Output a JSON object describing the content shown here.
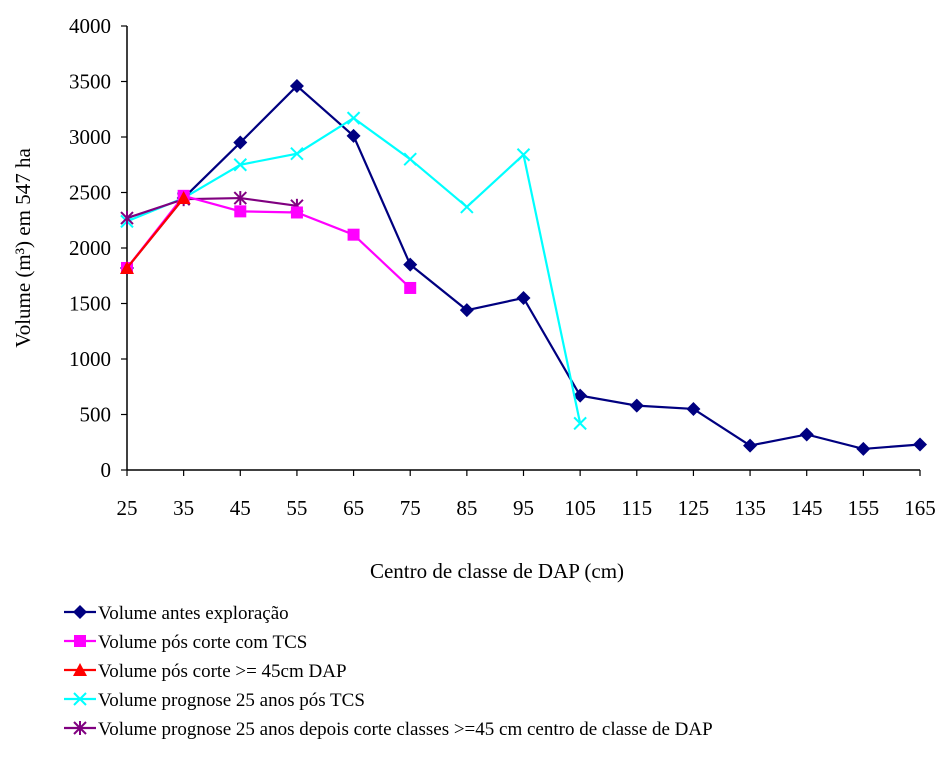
{
  "chart_data": {
    "type": "line",
    "title": "",
    "xlabel": "Centro de classe de DAP (cm)",
    "ylabel": "Volume (m³) em 547 ha",
    "categories": [
      "25",
      "35",
      "45",
      "55",
      "65",
      "75",
      "85",
      "95",
      "105",
      "115",
      "125",
      "135",
      "145",
      "155",
      "165"
    ],
    "ylim": [
      0,
      4000
    ],
    "yticks": [
      0,
      500,
      1000,
      1500,
      2000,
      2500,
      3000,
      3500,
      4000
    ],
    "grid": false,
    "legend_position": "bottom",
    "series": [
      {
        "name": "Volume antes exploração",
        "color": "#000080",
        "marker": "diamond",
        "values": [
          1820,
          2450,
          2950,
          3460,
          3010,
          1850,
          1440,
          1550,
          670,
          580,
          550,
          220,
          320,
          190,
          230
        ]
      },
      {
        "name": "Volume pós corte com TCS",
        "color": "#ff00ff",
        "marker": "square",
        "values": [
          1820,
          2470,
          2330,
          2320,
          2120,
          1640,
          null,
          null,
          null,
          null,
          null,
          null,
          null,
          null,
          null
        ]
      },
      {
        "name": "Volume pós corte >= 45cm DAP",
        "color": "#ff0000",
        "marker": "triangle",
        "values": [
          1820,
          2450,
          null,
          null,
          null,
          null,
          null,
          null,
          null,
          null,
          null,
          null,
          null,
          null,
          null
        ]
      },
      {
        "name": "Volume prognose 25 anos pós TCS",
        "color": "#00ffff",
        "marker": "x",
        "values": [
          2240,
          2450,
          2750,
          2850,
          3170,
          2800,
          2370,
          2840,
          420,
          null,
          null,
          null,
          null,
          null,
          null
        ]
      },
      {
        "name": "Volume prognose 25 anos depois corte classes >=45 cm centro de classe de DAP",
        "color": "#800080",
        "marker": "star",
        "values": [
          2270,
          2440,
          2450,
          2380,
          null,
          null,
          null,
          null,
          null,
          null,
          null,
          null,
          null,
          null,
          null
        ]
      }
    ]
  }
}
